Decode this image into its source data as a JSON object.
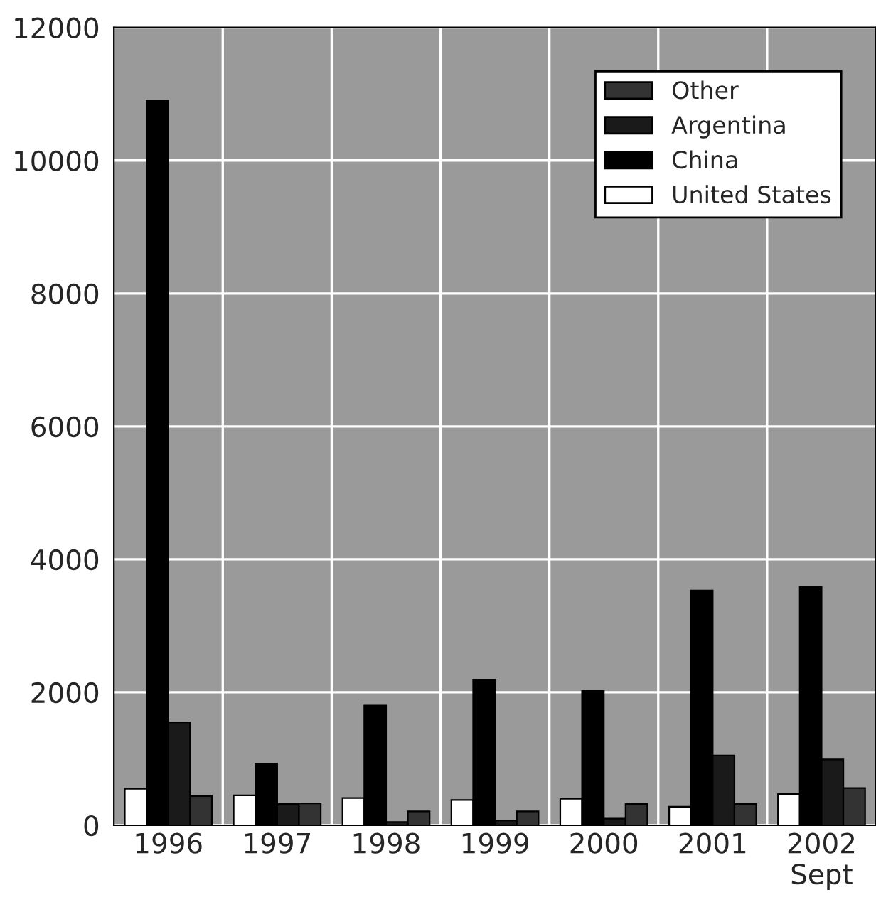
{
  "chart_data": {
    "type": "bar",
    "categories": [
      "1996",
      "1997",
      "1998",
      "1999",
      "2000",
      "2001",
      "2002\nSept"
    ],
    "series": [
      {
        "name": "United States",
        "color": "#ffffff",
        "values": [
          550,
          450,
          410,
          380,
          400,
          280,
          470
        ]
      },
      {
        "name": "China",
        "color": "#000000",
        "values": [
          10900,
          930,
          1800,
          2190,
          2020,
          3530,
          3580
        ]
      },
      {
        "name": "Argentina",
        "color": "#1a1a1a",
        "values": [
          1550,
          320,
          50,
          70,
          100,
          1050,
          990
        ]
      },
      {
        "name": "Other",
        "color": "#333333",
        "values": [
          440,
          330,
          210,
          210,
          320,
          320,
          560
        ]
      }
    ],
    "ylim": [
      0,
      12000
    ],
    "yticks": [
      0,
      2000,
      4000,
      6000,
      8000,
      10000,
      12000
    ],
    "grid": true,
    "legend": "top right"
  }
}
